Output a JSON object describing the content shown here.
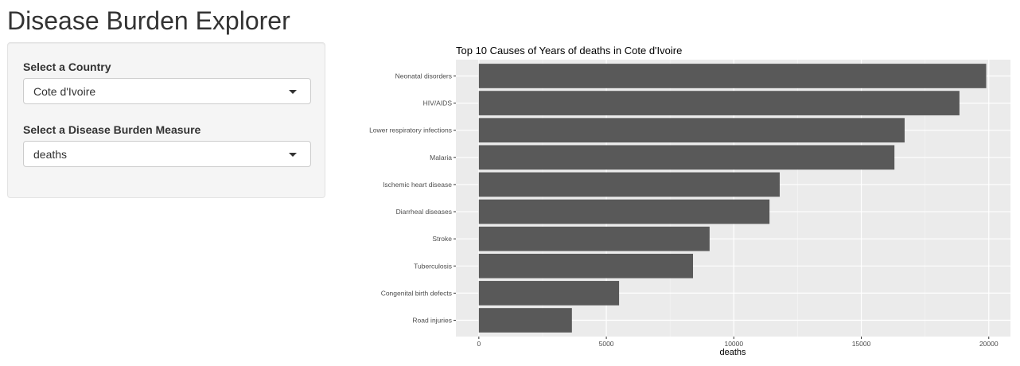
{
  "header": {
    "title": "Disease Burden Explorer"
  },
  "sidebar": {
    "country_label": "Select a Country",
    "country_value": "Cote d'Ivoire",
    "measure_label": "Select a Disease Burden Measure",
    "measure_value": "deaths"
  },
  "chart_data": {
    "type": "bar",
    "orientation": "horizontal",
    "title": "Top 10 Causes of Years of deaths in Cote d'Ivoire",
    "xlabel": "deaths",
    "ylabel": "",
    "xlim": [
      -900,
      20850
    ],
    "xticks": [
      0,
      5000,
      10000,
      15000,
      20000
    ],
    "grid": true,
    "legend": "none",
    "bar_color": "#595959",
    "panel_color": "#ebebeb",
    "categories": [
      "Neonatal disorders",
      "HIV/AIDS",
      "Lower respiratory infections",
      "Malaria",
      "Ischemic heart disease",
      "Diarrheal diseases",
      "Stroke",
      "Tuberculosis",
      "Congenital birth defects",
      "Road injuries"
    ],
    "values": [
      19900,
      18850,
      16700,
      16300,
      11800,
      11400,
      9050,
      8400,
      5500,
      3650
    ]
  }
}
